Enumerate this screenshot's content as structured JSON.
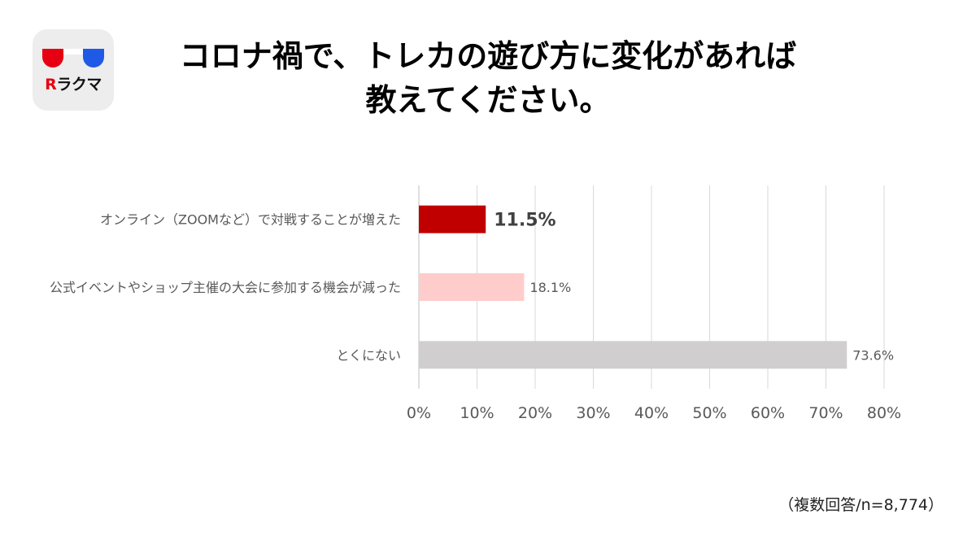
{
  "logo": {
    "icon": "rakuma-glasses-icon",
    "mark": "R",
    "text": "ラクマ",
    "colors": {
      "left": "#e60012",
      "right": "#1e5ae6",
      "background": "#ededed"
    }
  },
  "title": {
    "line1": "コロナ禍で、トレカの遊び方に変化があれば",
    "line2": "教えてください。"
  },
  "chart_data": {
    "type": "bar",
    "orientation": "horizontal",
    "categories": [
      "オンライン（ZOOMなど）で対戦することが増えた",
      "公式イベントやショップ主催の大会に参加する機会が減った",
      "とくにない"
    ],
    "values": [
      11.5,
      18.1,
      73.6
    ],
    "value_labels": [
      "11.5%",
      "18.1%",
      "73.6%"
    ],
    "bar_colors": [
      "#c00000",
      "#ffcccc",
      "#d0cece"
    ],
    "xlim": [
      0,
      80
    ],
    "xticks": [
      "0%",
      "10%",
      "20%",
      "30%",
      "40%",
      "50%",
      "60%",
      "70%",
      "80%"
    ],
    "grid": true
  },
  "footnote": "（複数回答/n=8,774）"
}
